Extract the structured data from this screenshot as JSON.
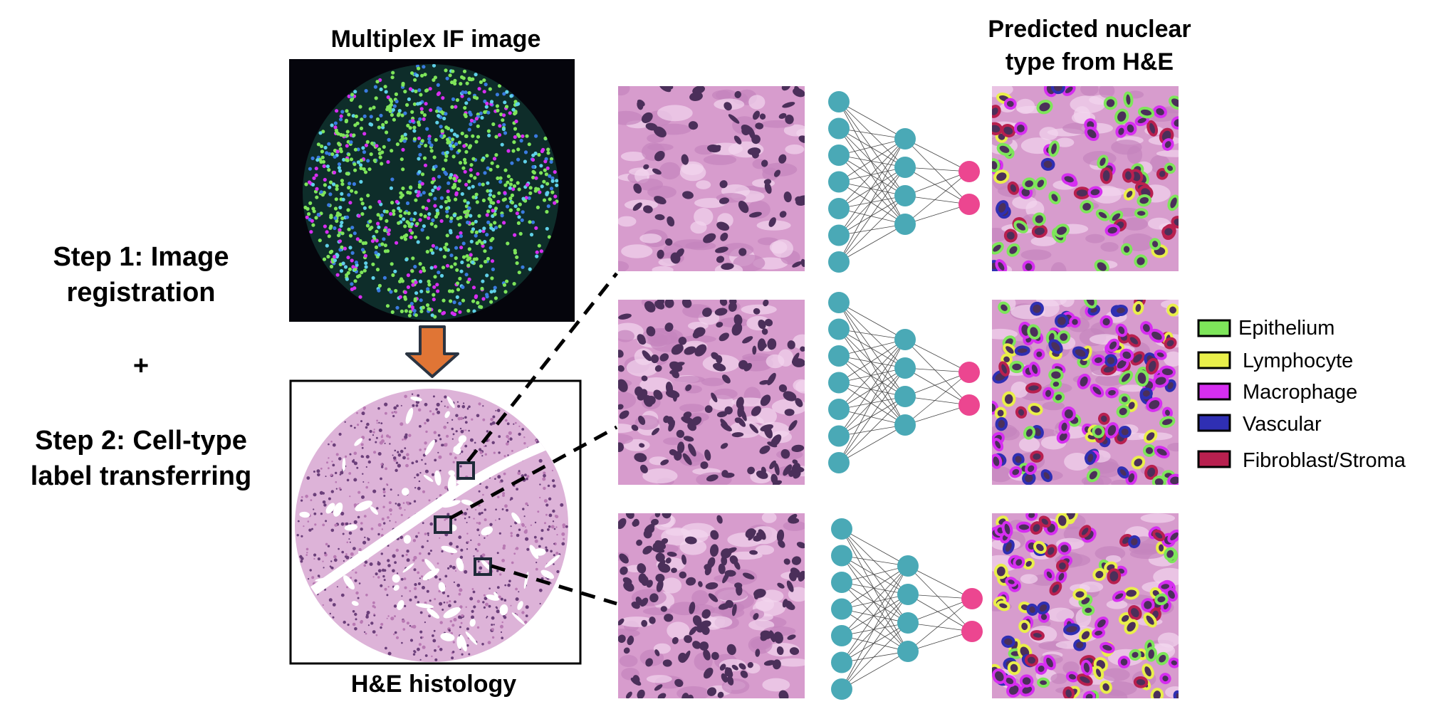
{
  "steps": {
    "step1_line1": "Step 1: Image",
    "step1_line2": "registration",
    "plus": "+",
    "step2_line1": "Step 2: Cell-type",
    "step2_line2": "label transferring"
  },
  "panels": {
    "if_title": "Multiplex IF image",
    "he_title": "H&E histology",
    "pred_title_line1": "Predicted nuclear",
    "pred_title_line2": "type from H&E"
  },
  "legend": [
    {
      "label": "Epithelium",
      "color": "#7ee55a"
    },
    {
      "label": "Lymphocyte",
      "color": "#e9ef4a"
    },
    {
      "label": "Macrophage",
      "color": "#d62ef0"
    },
    {
      "label": "Vascular",
      "color": "#2f2fb3"
    },
    {
      "label": "Fibroblast/Stroma",
      "color": "#b8204f"
    }
  ],
  "colors": {
    "arrow": "#e07535",
    "arrow_outline": "#2b3441",
    "nn_input_node": "#4aa9b6",
    "nn_output_node": "#ec4690",
    "he_tissue": "#d79ccd",
    "he_nuclei": "#4b2f5a",
    "if_background": "#05050c"
  },
  "network_layers": [
    7,
    4,
    2
  ]
}
